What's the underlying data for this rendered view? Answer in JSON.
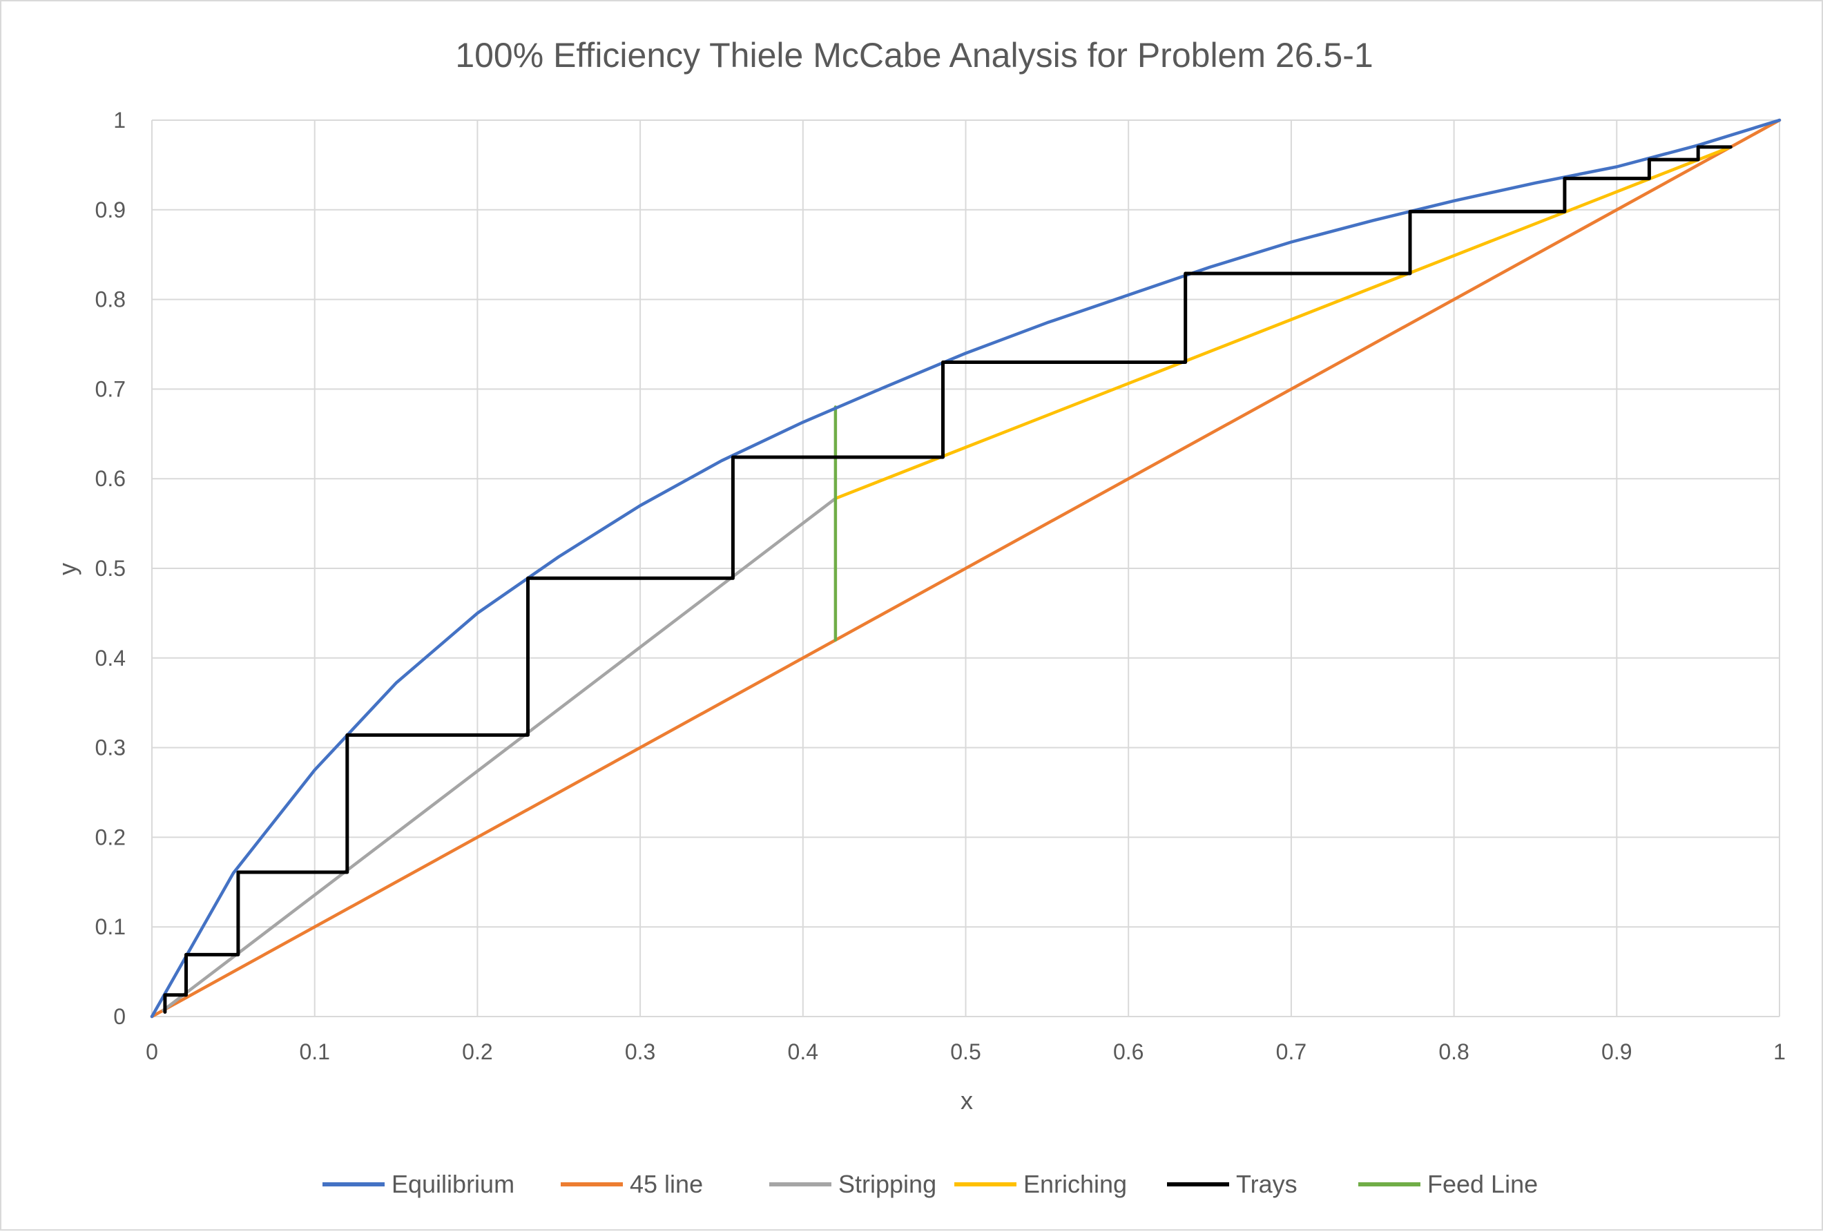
{
  "chart_data": {
    "type": "line",
    "title": "100% Efficiency Thiele McCabe Analysis for Problem 26.5-1",
    "xlabel": "x",
    "ylabel": "y",
    "xlim": [
      0,
      1
    ],
    "ylim": [
      0,
      1
    ],
    "x_ticks": [
      "0",
      "0.1",
      "0.2",
      "0.3",
      "0.4",
      "0.5",
      "0.6",
      "0.7",
      "0.8",
      "0.9",
      "1"
    ],
    "y_ticks": [
      "0",
      "0.1",
      "0.2",
      "0.3",
      "0.4",
      "0.5",
      "0.6",
      "0.7",
      "0.8",
      "0.9",
      "1"
    ],
    "grid": true,
    "legend_position": "bottom",
    "series": [
      {
        "name": "Equilibrium",
        "color": "#4472C4",
        "points": [
          [
            0,
            0
          ],
          [
            0.05,
            0.16
          ],
          [
            0.1,
            0.275
          ],
          [
            0.15,
            0.372
          ],
          [
            0.2,
            0.45
          ],
          [
            0.25,
            0.513
          ],
          [
            0.3,
            0.57
          ],
          [
            0.35,
            0.62
          ],
          [
            0.4,
            0.663
          ],
          [
            0.45,
            0.702
          ],
          [
            0.5,
            0.74
          ],
          [
            0.55,
            0.774
          ],
          [
            0.6,
            0.805
          ],
          [
            0.65,
            0.836
          ],
          [
            0.7,
            0.864
          ],
          [
            0.75,
            0.888
          ],
          [
            0.8,
            0.91
          ],
          [
            0.85,
            0.93
          ],
          [
            0.9,
            0.948
          ],
          [
            0.95,
            0.972
          ],
          [
            1,
            1
          ]
        ]
      },
      {
        "name": "45 line",
        "color": "#ED7D31",
        "points": [
          [
            0,
            0
          ],
          [
            1,
            1
          ]
        ]
      },
      {
        "name": "Stripping",
        "color": "#A5A5A5",
        "points": [
          [
            0.007,
            0.007
          ],
          [
            0.42,
            0.578
          ]
        ]
      },
      {
        "name": "Enriching",
        "color": "#FFC000",
        "points": [
          [
            0.42,
            0.578
          ],
          [
            0.97,
            0.97
          ]
        ]
      },
      {
        "name": "Trays",
        "color": "#000000",
        "points": [
          [
            0.97,
            0.97
          ],
          [
            0.95,
            0.97
          ],
          [
            0.95,
            0.956
          ],
          [
            0.92,
            0.956
          ],
          [
            0.92,
            0.935
          ],
          [
            0.868,
            0.935
          ],
          [
            0.868,
            0.898
          ],
          [
            0.773,
            0.898
          ],
          [
            0.773,
            0.829
          ],
          [
            0.635,
            0.829
          ],
          [
            0.635,
            0.73
          ],
          [
            0.486,
            0.73
          ],
          [
            0.486,
            0.624
          ],
          [
            0.357,
            0.624
          ],
          [
            0.357,
            0.489
          ],
          [
            0.231,
            0.489
          ],
          [
            0.231,
            0.314
          ],
          [
            0.12,
            0.314
          ],
          [
            0.12,
            0.161
          ],
          [
            0.053,
            0.161
          ],
          [
            0.053,
            0.069
          ],
          [
            0.021,
            0.069
          ],
          [
            0.021,
            0.024
          ],
          [
            0.008,
            0.024
          ],
          [
            0.008,
            0.005
          ]
        ]
      },
      {
        "name": "Feed Line",
        "color": "#70AD47",
        "points": [
          [
            0.42,
            0.42
          ],
          [
            0.42,
            0.68
          ]
        ]
      }
    ]
  }
}
